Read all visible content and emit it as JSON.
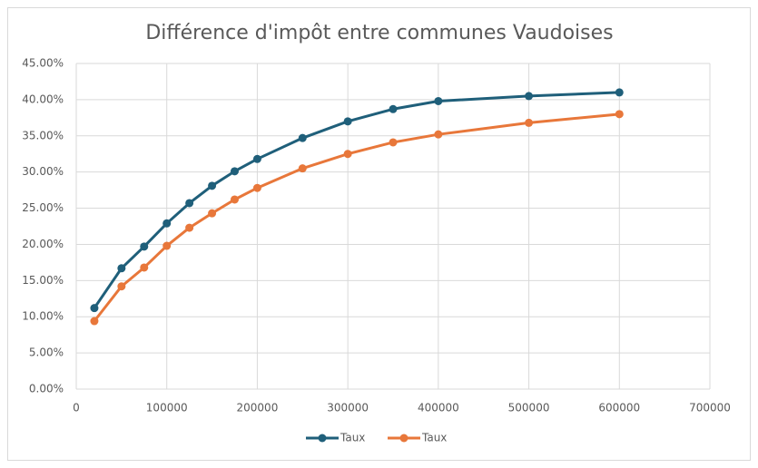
{
  "chart_data": {
    "type": "line",
    "title": "Différence d'impôt entre communes Vaudoises",
    "x": [
      20000,
      50000,
      75000,
      100000,
      125000,
      150000,
      175000,
      200000,
      250000,
      300000,
      350000,
      400000,
      500000,
      600000
    ],
    "series": [
      {
        "name": "Taux",
        "color": "#1f5f7a",
        "values": [
          11.2,
          16.7,
          19.7,
          22.9,
          25.7,
          28.1,
          30.1,
          31.8,
          34.7,
          37.0,
          38.7,
          39.8,
          40.5,
          41.0
        ]
      },
      {
        "name": "Taux",
        "color": "#e8773a",
        "values": [
          9.4,
          14.2,
          16.8,
          19.8,
          22.3,
          24.3,
          26.2,
          27.8,
          30.5,
          32.5,
          34.1,
          35.2,
          36.8,
          38.0
        ]
      }
    ],
    "xlim": [
      0,
      700000
    ],
    "xticks": [
      0,
      100000,
      200000,
      300000,
      400000,
      500000,
      600000,
      700000
    ],
    "ylim": [
      0,
      45
    ],
    "yticks": [
      {
        "value": 0,
        "label": "0.00%"
      },
      {
        "value": 5,
        "label": "5.00%"
      },
      {
        "value": 10,
        "label": "10.00%"
      },
      {
        "value": 15,
        "label": "15.00%"
      },
      {
        "value": 20,
        "label": "20.00%"
      },
      {
        "value": 25,
        "label": "25.00%"
      },
      {
        "value": 30,
        "label": "30.00%"
      },
      {
        "value": 35,
        "label": "35.00%"
      },
      {
        "value": 40,
        "label": "40.00%"
      },
      {
        "value": 45,
        "label": "45.00%"
      }
    ],
    "grid": true,
    "legend": "bottom"
  }
}
